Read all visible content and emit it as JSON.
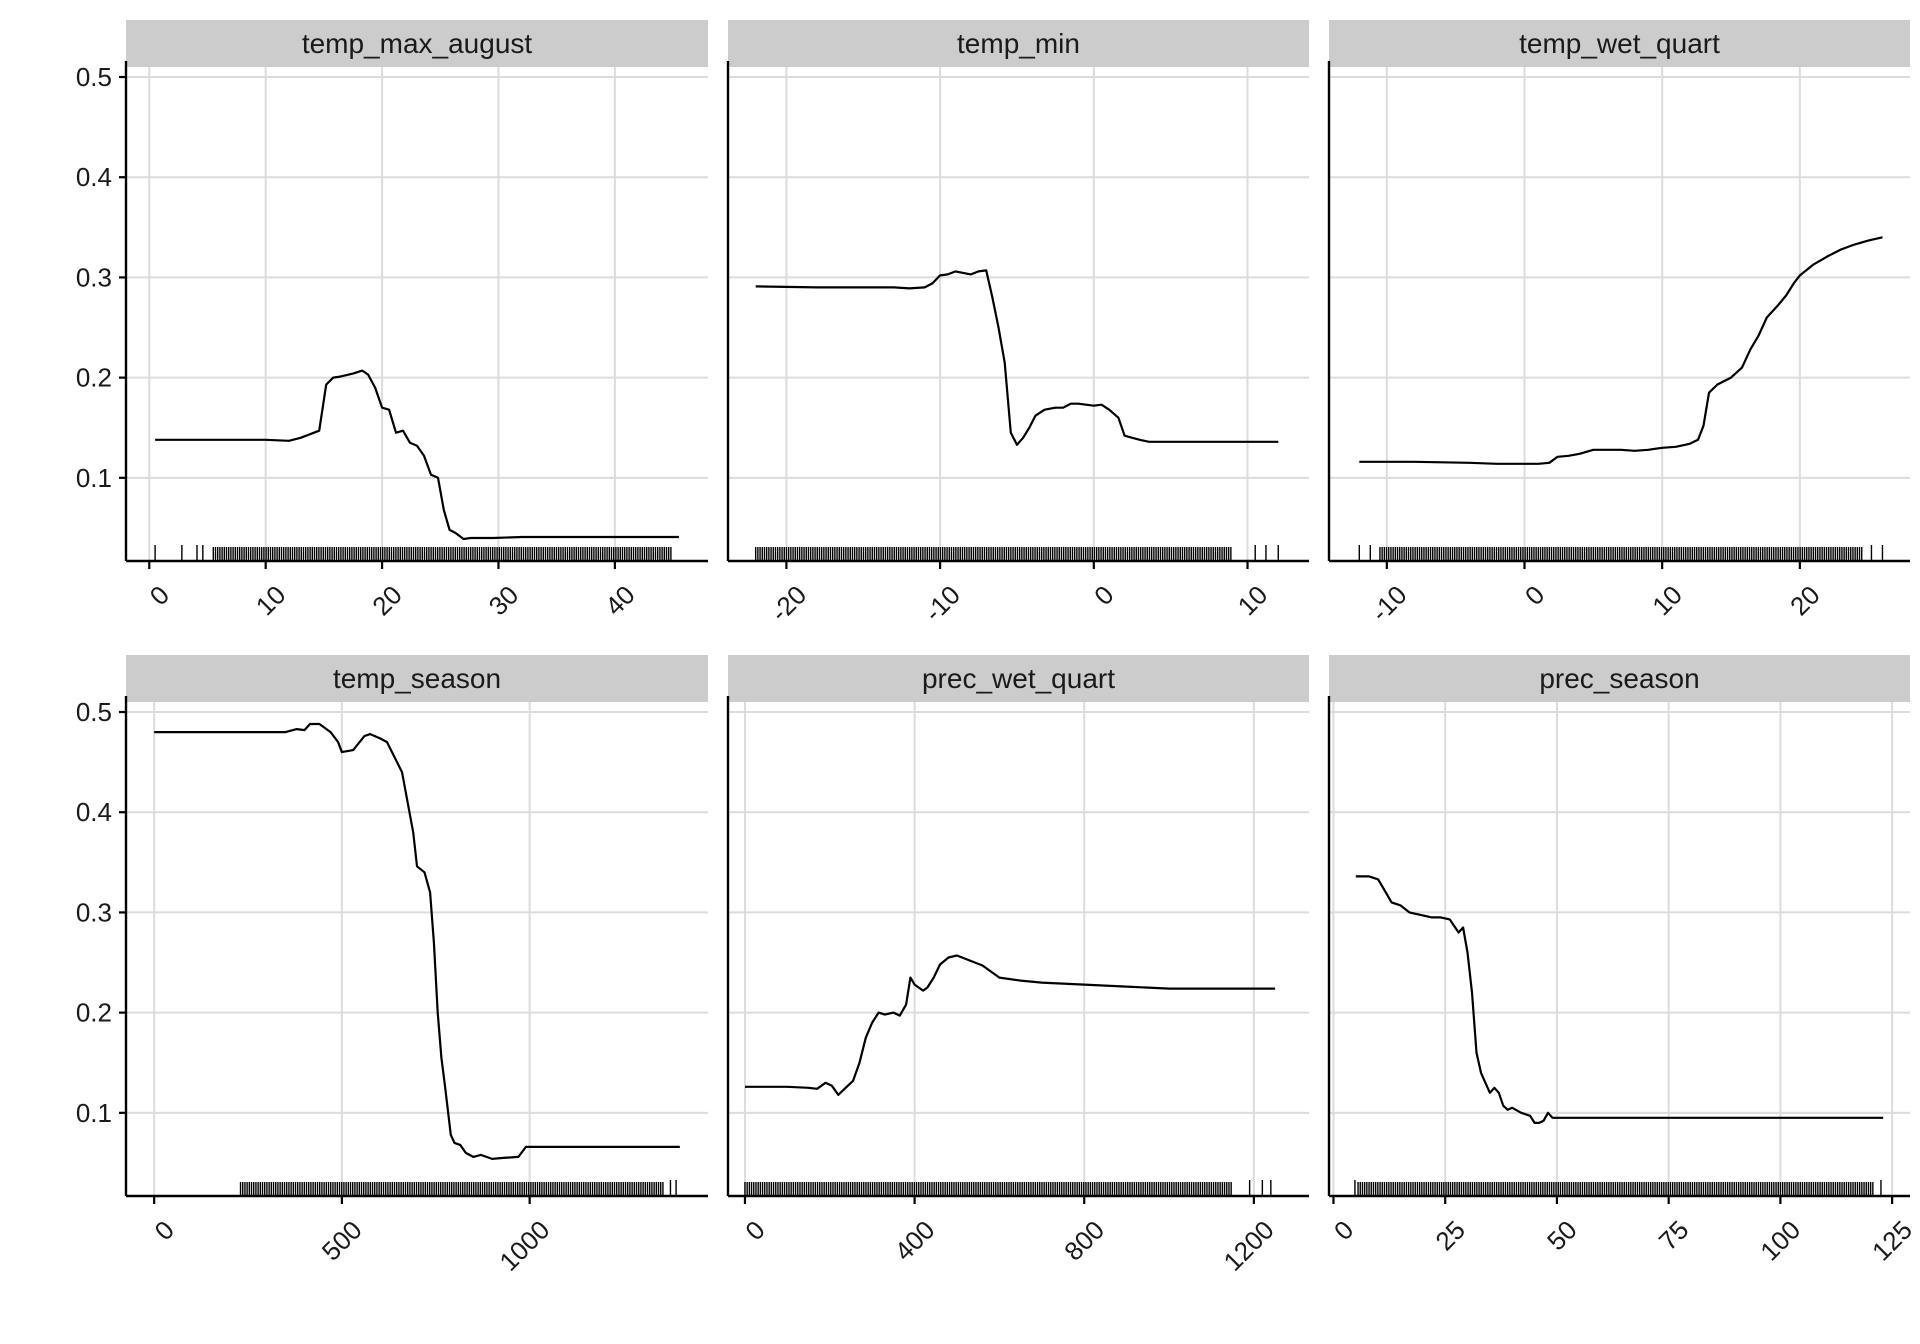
{
  "chart_data": [
    {
      "type": "line",
      "title": "temp_max_august",
      "xlim": [
        -2,
        48
      ],
      "ylim": [
        0.017,
        0.51
      ],
      "x_ticks": [
        0,
        10,
        20,
        30,
        40
      ],
      "y_ticks": [
        0.1,
        0.2,
        0.3,
        0.4,
        0.5
      ],
      "y_tick_labels": [
        "0.1",
        "0.2",
        "0.3",
        "0.4",
        "0.5"
      ],
      "x": [
        0.5,
        5,
        10,
        12,
        13,
        14.6,
        15.2,
        15.8,
        16.4,
        17.5,
        18.3,
        18.8,
        19.4,
        20,
        20.6,
        21.2,
        21.8,
        22.4,
        23,
        23.6,
        24.2,
        24.8,
        25.3,
        25.8,
        26.3,
        27,
        27.6,
        28.2,
        29.5,
        32,
        36,
        40,
        45.5
      ],
      "y": [
        0.138,
        0.138,
        0.138,
        0.137,
        0.14,
        0.147,
        0.193,
        0.2,
        0.201,
        0.204,
        0.207,
        0.203,
        0.19,
        0.17,
        0.168,
        0.145,
        0.147,
        0.135,
        0.132,
        0.122,
        0.103,
        0.1,
        0.068,
        0.048,
        0.045,
        0.039,
        0.04,
        0.04,
        0.04,
        0.041,
        0.041,
        0.041,
        0.041
      ],
      "rug_start": 5.5,
      "rug_end": 45,
      "rug_extra": [
        0.5,
        2.8,
        4.1,
        4.6
      ]
    },
    {
      "type": "line",
      "title": "temp_min",
      "xlim": [
        -23.8,
        14
      ],
      "ylim": [
        0.017,
        0.51
      ],
      "x_ticks": [
        -20,
        -10,
        0,
        10
      ],
      "y_ticks": [
        0.1,
        0.2,
        0.3,
        0.4,
        0.5
      ],
      "y_tick_labels": [
        "0.1",
        "0.2",
        "0.3",
        "0.4",
        "0.5"
      ],
      "x": [
        -22,
        -18,
        -16,
        -14,
        -13,
        -12,
        -11,
        -10.5,
        -10,
        -9.5,
        -9,
        -8,
        -7.5,
        -7,
        -6.6,
        -6.2,
        -5.8,
        -5.4,
        -5,
        -4.6,
        -4.2,
        -3.8,
        -3.2,
        -2.5,
        -2,
        -1.5,
        -1,
        0,
        0.5,
        1,
        1.6,
        2,
        2.5,
        3,
        3.6,
        4.5,
        6,
        8,
        12
      ],
      "y": [
        0.291,
        0.29,
        0.29,
        0.29,
        0.29,
        0.289,
        0.29,
        0.294,
        0.302,
        0.303,
        0.306,
        0.303,
        0.306,
        0.307,
        0.28,
        0.25,
        0.215,
        0.145,
        0.133,
        0.14,
        0.15,
        0.162,
        0.168,
        0.17,
        0.17,
        0.174,
        0.174,
        0.172,
        0.173,
        0.168,
        0.16,
        0.142,
        0.14,
        0.138,
        0.136,
        0.136,
        0.136,
        0.136,
        0.136
      ],
      "rug_start": -22,
      "rug_end": 9,
      "rug_extra": [
        10.5,
        11.2,
        12
      ]
    },
    {
      "type": "line",
      "title": "temp_wet_quart",
      "xlim": [
        -14.2,
        28
      ],
      "ylim": [
        0.017,
        0.51
      ],
      "x_ticks": [
        -10,
        0,
        10,
        20
      ],
      "y_ticks": [
        0.1,
        0.2,
        0.3,
        0.4,
        0.5
      ],
      "y_tick_labels": [
        "0.1",
        "0.2",
        "0.3",
        "0.4",
        "0.5"
      ],
      "x": [
        -12,
        -8,
        -4,
        -2,
        0,
        1,
        1.8,
        2.4,
        3.2,
        4,
        5,
        6,
        7,
        8,
        9,
        10,
        11,
        12,
        12.6,
        13,
        13.4,
        14,
        15,
        15.8,
        16.4,
        17,
        17.6,
        18.4,
        19,
        19.6,
        20,
        21,
        22,
        23,
        24,
        25,
        26
      ],
      "y": [
        0.116,
        0.116,
        0.115,
        0.114,
        0.114,
        0.114,
        0.115,
        0.121,
        0.122,
        0.124,
        0.128,
        0.128,
        0.128,
        0.127,
        0.128,
        0.13,
        0.131,
        0.134,
        0.138,
        0.152,
        0.185,
        0.193,
        0.2,
        0.21,
        0.228,
        0.242,
        0.26,
        0.272,
        0.282,
        0.295,
        0.302,
        0.313,
        0.321,
        0.328,
        0.333,
        0.337,
        0.34
      ],
      "rug_start": -10.5,
      "rug_end": 24.5,
      "rug_extra": [
        -12,
        -11.2,
        25.2,
        26
      ]
    },
    {
      "type": "line",
      "title": "temp_season",
      "xlim": [
        -75,
        1475
      ],
      "ylim": [
        0.017,
        0.51
      ],
      "x_ticks": [
        0,
        500,
        1000
      ],
      "y_ticks": [
        0.1,
        0.2,
        0.3,
        0.4,
        0.5
      ],
      "y_tick_labels": [
        "0.1",
        "0.2",
        "0.3",
        "0.4",
        "0.5"
      ],
      "x": [
        0,
        200,
        350,
        380,
        400,
        415,
        440,
        470,
        490,
        500,
        530,
        560,
        575,
        600,
        620,
        660,
        690,
        700,
        720,
        735,
        745,
        755,
        765,
        770,
        775,
        790,
        800,
        815,
        830,
        850,
        870,
        900,
        930,
        970,
        990,
        1020,
        1100,
        1200,
        1400
      ],
      "y": [
        0.48,
        0.48,
        0.48,
        0.483,
        0.482,
        0.488,
        0.488,
        0.48,
        0.47,
        0.46,
        0.462,
        0.476,
        0.478,
        0.474,
        0.47,
        0.44,
        0.38,
        0.346,
        0.34,
        0.32,
        0.27,
        0.2,
        0.155,
        0.14,
        0.125,
        0.078,
        0.07,
        0.068,
        0.06,
        0.056,
        0.058,
        0.054,
        0.055,
        0.056,
        0.066,
        0.066,
        0.066,
        0.066,
        0.066
      ],
      "rug_start": 230,
      "rug_end": 1360,
      "rug_extra": [
        1375,
        1390
      ]
    },
    {
      "type": "line",
      "title": "prec_wet_quart",
      "xlim": [
        -40,
        1330
      ],
      "ylim": [
        0.017,
        0.51
      ],
      "x_ticks": [
        0,
        400,
        800,
        1200
      ],
      "y_ticks": [
        0.1,
        0.2,
        0.3,
        0.4,
        0.5
      ],
      "y_tick_labels": [
        "0.1",
        "0.2",
        "0.3",
        "0.4",
        "0.5"
      ],
      "x": [
        0,
        100,
        150,
        170,
        190,
        205,
        220,
        240,
        255,
        270,
        285,
        300,
        315,
        330,
        350,
        365,
        380,
        390,
        400,
        420,
        430,
        445,
        460,
        480,
        500,
        530,
        560,
        600,
        650,
        700,
        800,
        900,
        1000,
        1100,
        1250
      ],
      "y": [
        0.126,
        0.126,
        0.125,
        0.124,
        0.13,
        0.127,
        0.118,
        0.126,
        0.132,
        0.15,
        0.175,
        0.19,
        0.2,
        0.198,
        0.2,
        0.197,
        0.208,
        0.235,
        0.228,
        0.222,
        0.225,
        0.235,
        0.248,
        0.255,
        0.257,
        0.252,
        0.247,
        0.235,
        0.232,
        0.23,
        0.228,
        0.226,
        0.224,
        0.224,
        0.224
      ],
      "rug_start": 0,
      "rug_end": 1150,
      "rug_extra": [
        1190,
        1220,
        1240
      ]
    },
    {
      "type": "line",
      "title": "prec_season",
      "xlim": [
        -1,
        129
      ],
      "ylim": [
        0.017,
        0.51
      ],
      "x_ticks": [
        0,
        25,
        50,
        75,
        100,
        125
      ],
      "y_ticks": [
        0.1,
        0.2,
        0.3,
        0.4,
        0.5
      ],
      "y_tick_labels": [
        "0.1",
        "0.2",
        "0.3",
        "0.4",
        "0.5"
      ],
      "x": [
        5,
        8,
        10,
        13,
        15,
        17,
        20,
        22,
        24,
        26,
        28,
        29,
        30,
        31,
        32,
        33,
        34,
        35,
        36,
        37,
        38,
        39,
        40,
        42,
        44,
        45,
        46,
        47,
        48,
        49,
        50,
        52,
        60,
        80,
        100,
        123
      ],
      "y": [
        0.336,
        0.336,
        0.333,
        0.31,
        0.307,
        0.3,
        0.297,
        0.295,
        0.295,
        0.293,
        0.28,
        0.285,
        0.26,
        0.22,
        0.16,
        0.14,
        0.13,
        0.12,
        0.125,
        0.12,
        0.107,
        0.103,
        0.105,
        0.1,
        0.097,
        0.09,
        0.09,
        0.092,
        0.1,
        0.095,
        0.095,
        0.095,
        0.095,
        0.095,
        0.095,
        0.095
      ],
      "rug_start": 5.5,
      "rug_end": 121,
      "rug_extra": [
        4.8,
        122.5
      ]
    }
  ]
}
